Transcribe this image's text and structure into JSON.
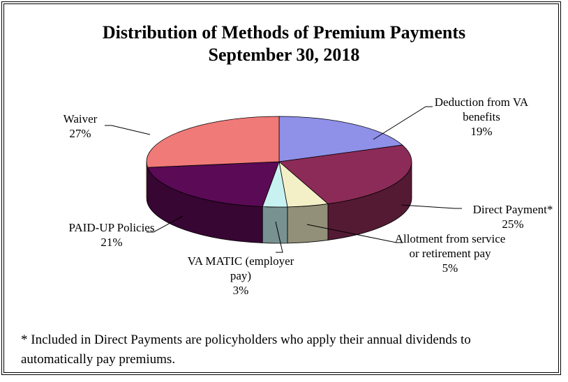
{
  "chart_data": {
    "type": "pie",
    "title": "Distribution of Methods of Premium Payments",
    "subtitle": "September 30, 2018",
    "categories": [
      "Deduction from VA benefits",
      "Direct Payment*",
      "Allotment from service or retirement pay",
      "VA MATIC (employer pay)",
      "PAID-UP Policies",
      "Waiver"
    ],
    "values": [
      19,
      25,
      5,
      3,
      21,
      27
    ],
    "value_labels": [
      "19%",
      "25%",
      "5%",
      "3%",
      "21%",
      "27%"
    ],
    "colors": [
      "#8f90e8",
      "#8c2b57",
      "#f3f0c8",
      "#c8f2f2",
      "#5b0a55",
      "#f07a78"
    ],
    "note": "* Included in Direct Payments are policyholders who apply their annual dividends to automatically pay premiums."
  }
}
